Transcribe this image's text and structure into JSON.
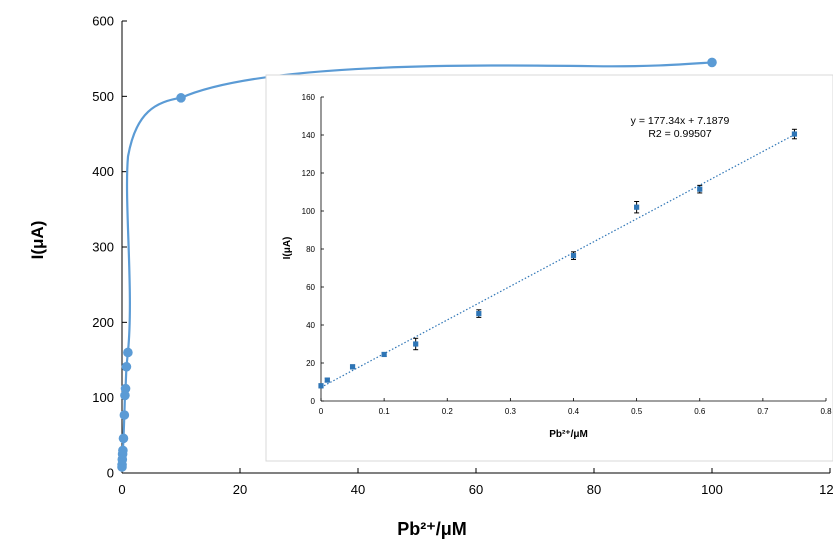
{
  "chart_data": [
    {
      "type": "scatter",
      "xlabel": "Pb²⁺/μM",
      "ylabel": "I(μA)",
      "xlim": [
        0,
        120
      ],
      "ylim": [
        0,
        600
      ],
      "x_ticks": [
        "0",
        "20",
        "40",
        "60",
        "80",
        "100",
        "120"
      ],
      "y_ticks": [
        "0",
        "100",
        "200",
        "300",
        "400",
        "500",
        "600"
      ],
      "grid": false,
      "smooth_line": true,
      "color": "#5b9bd5",
      "series": [
        {
          "x": [
            0,
            0.01,
            0.05,
            0.1,
            0.15,
            0.25,
            0.4,
            0.5,
            0.6,
            0.75,
            1,
            10,
            100
          ],
          "values": [
            8,
            11,
            18,
            25,
            30,
            46,
            77,
            103,
            112,
            141,
            160,
            498,
            545
          ]
        }
      ]
    },
    {
      "type": "scatter",
      "xlabel": "Pb²⁺/μM",
      "ylabel": "I(μA)",
      "xlim": [
        0,
        0.8
      ],
      "ylim": [
        0,
        160
      ],
      "x_ticks": [
        "0",
        "0.1",
        "0.2",
        "0.3",
        "0.4",
        "0.5",
        "0.6",
        "0.7",
        "0.8"
      ],
      "y_ticks": [
        "0",
        "20",
        "40",
        "60",
        "80",
        "100",
        "120",
        "140",
        "160"
      ],
      "grid": false,
      "color": "#2e75b6",
      "trendline": {
        "type": "linear",
        "slope": 177.34,
        "intercept": 7.1879,
        "style": "dotted"
      },
      "annotations": [
        "y = 177.34x + 7.1879",
        "R2 = 0.99507"
      ],
      "series": [
        {
          "x": [
            0,
            0.01,
            0.05,
            0.1,
            0.15,
            0.25,
            0.4,
            0.5,
            0.6,
            0.75
          ],
          "values": [
            8,
            11,
            18,
            24.5,
            30,
            46,
            76.5,
            102,
            111.5,
            140.5
          ],
          "error": [
            1,
            1,
            1,
            1,
            3,
            2,
            2,
            3,
            2,
            2.5
          ]
        }
      ]
    }
  ]
}
